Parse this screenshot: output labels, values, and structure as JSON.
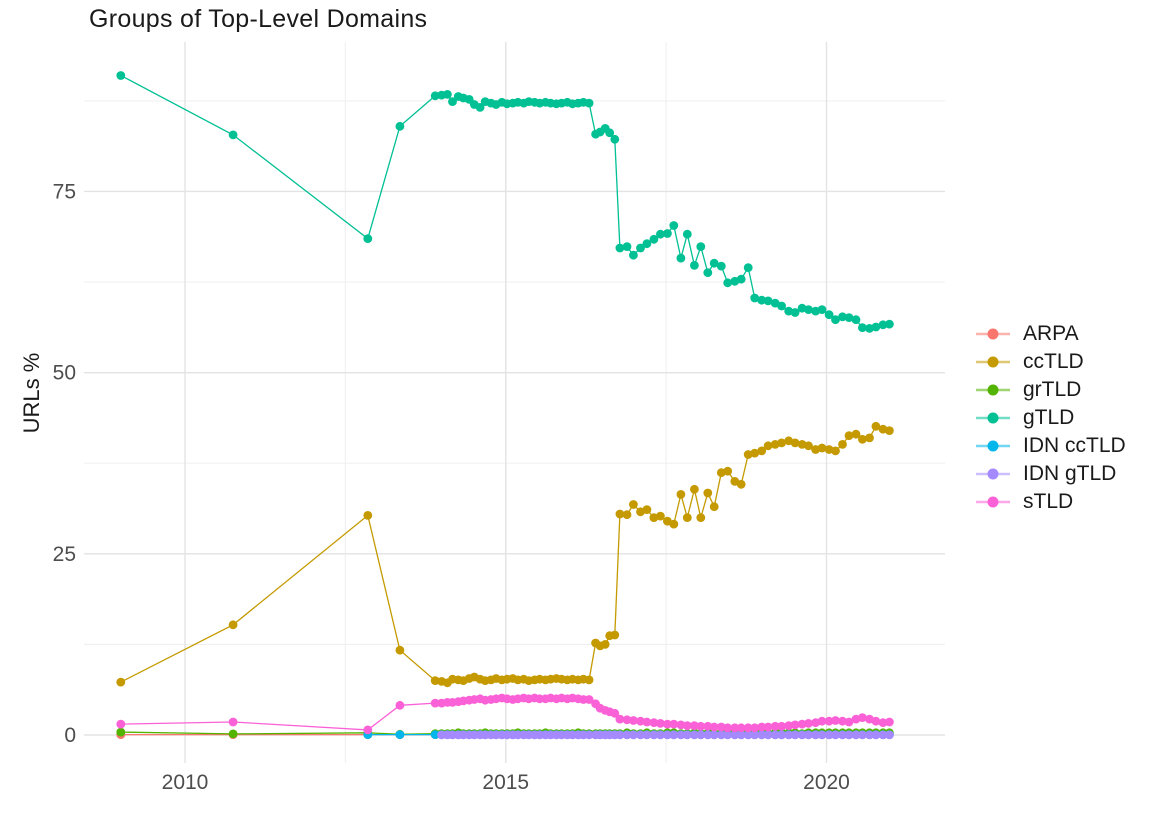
{
  "chart_data": {
    "type": "line",
    "title": "Groups of Top-Level Domains",
    "xlabel": "",
    "ylabel": "URLs %",
    "x_ticks": [
      2010,
      2015,
      2020
    ],
    "x_minor_ticks": [
      2012.5,
      2017.5
    ],
    "y_ticks": [
      0,
      25,
      50,
      75
    ],
    "y_minor_ticks": [
      12.5,
      37.5,
      62.5,
      87.5
    ],
    "xlim": [
      2008.4,
      2021.9
    ],
    "ylim": [
      -4,
      96
    ],
    "grid": true,
    "legend_position": "right",
    "x": [
      2009.0,
      2010.75,
      2012.85,
      2013.35,
      2013.9,
      2014.0,
      2014.09,
      2014.17,
      2014.26,
      2014.34,
      2014.43,
      2014.51,
      2014.6,
      2014.68,
      2014.77,
      2014.85,
      2014.94,
      2015.02,
      2015.11,
      2015.19,
      2015.28,
      2015.36,
      2015.45,
      2015.53,
      2015.62,
      2015.7,
      2015.79,
      2015.87,
      2015.96,
      2016.04,
      2016.13,
      2016.21,
      2016.3,
      2016.4,
      2016.47,
      2016.55,
      2016.62,
      2016.7,
      2016.78,
      2016.89,
      2016.99,
      2017.1,
      2017.2,
      2017.31,
      2017.41,
      2017.52,
      2017.62,
      2017.73,
      2017.83,
      2017.94,
      2018.04,
      2018.15,
      2018.25,
      2018.36,
      2018.46,
      2018.57,
      2018.67,
      2018.78,
      2018.88,
      2018.99,
      2019.09,
      2019.2,
      2019.3,
      2019.41,
      2019.51,
      2019.62,
      2019.72,
      2019.83,
      2019.93,
      2020.04,
      2020.14,
      2020.25,
      2020.35,
      2020.46,
      2020.56,
      2020.67,
      2020.77,
      2020.88,
      2020.98
    ],
    "series": [
      {
        "name": "ARPA",
        "color": "#F8766D",
        "values": [
          0.05,
          0.05,
          0.05,
          0.05,
          0.05,
          0.05,
          0.05,
          0.05,
          0.05,
          0.05,
          0.05,
          0.05,
          0.05,
          0.05,
          0.05,
          0.05,
          0.05,
          0.05,
          0.05,
          0.05,
          0.05,
          0.05,
          0.05,
          0.05,
          0.05,
          0.05,
          0.05,
          0.05,
          0.05,
          0.05,
          0.05,
          0.05,
          0.05,
          0.05,
          0.05,
          0.05,
          0.05,
          0.05,
          0.05,
          0.05,
          0.05,
          0.05,
          0.05,
          0.05,
          0.05,
          0.05,
          0.05,
          0.05,
          0.05,
          0.05,
          0.05,
          0.05,
          0.05,
          0.05,
          0.05,
          0.05,
          0.05,
          0.05,
          0.05,
          0.05,
          0.05,
          0.05,
          0.05,
          0.05,
          0.05,
          0.05,
          0.05,
          0.05,
          0.05,
          0.05,
          0.05,
          0.05,
          0.05,
          0.05,
          0.05,
          0.05,
          0.05,
          0.05,
          0.05
        ]
      },
      {
        "name": "ccTLD",
        "color": "#C49A00",
        "values": [
          7.3,
          15.2,
          30.3,
          11.7,
          7.5,
          7.4,
          7.2,
          7.7,
          7.6,
          7.5,
          7.8,
          8.0,
          7.7,
          7.5,
          7.6,
          7.8,
          7.6,
          7.7,
          7.8,
          7.6,
          7.7,
          7.5,
          7.6,
          7.7,
          7.6,
          7.7,
          7.8,
          7.7,
          7.6,
          7.7,
          7.6,
          7.7,
          7.6,
          12.7,
          12.3,
          12.5,
          13.7,
          13.8,
          30.5,
          30.4,
          31.8,
          30.8,
          31.1,
          30.0,
          30.2,
          29.5,
          29.1,
          33.2,
          30.0,
          33.9,
          30.0,
          33.4,
          31.5,
          36.2,
          36.4,
          35.0,
          34.6,
          38.7,
          38.9,
          39.2,
          39.9,
          40.1,
          40.3,
          40.6,
          40.3,
          40.1,
          39.9,
          39.4,
          39.6,
          39.4,
          39.2,
          40.1,
          41.3,
          41.5,
          40.8,
          41.0,
          42.6,
          42.2,
          42.0
        ]
      },
      {
        "name": "grTLD",
        "color": "#53B400",
        "values": [
          0.4,
          0.15,
          0.3,
          0.1,
          0.2,
          0.2,
          0.2,
          0.2,
          0.3,
          0.2,
          0.2,
          0.2,
          0.2,
          0.3,
          0.2,
          0.2,
          0.2,
          0.2,
          0.2,
          0.3,
          0.2,
          0.2,
          0.2,
          0.2,
          0.3,
          0.2,
          0.2,
          0.2,
          0.2,
          0.2,
          0.3,
          0.2,
          0.2,
          0.2,
          0.2,
          0.2,
          0.2,
          0.2,
          0.2,
          0.3,
          0.2,
          0.2,
          0.3,
          0.2,
          0.2,
          0.3,
          0.3,
          0.2,
          0.2,
          0.3,
          0.2,
          0.3,
          0.3,
          0.2,
          0.3,
          0.3,
          0.2,
          0.3,
          0.3,
          0.3,
          0.2,
          0.3,
          0.3,
          0.3,
          0.3,
          0.2,
          0.3,
          0.3,
          0.3,
          0.3,
          0.3,
          0.3,
          0.3,
          0.3,
          0.3,
          0.3,
          0.3,
          0.3,
          0.3
        ]
      },
      {
        "name": "gTLD",
        "color": "#00C094",
        "values": [
          91.0,
          82.8,
          68.5,
          84.0,
          88.2,
          88.3,
          88.4,
          87.4,
          88.1,
          87.9,
          87.7,
          87.0,
          86.6,
          87.4,
          87.2,
          87.0,
          87.3,
          87.1,
          87.2,
          87.3,
          87.2,
          87.4,
          87.3,
          87.2,
          87.3,
          87.2,
          87.1,
          87.2,
          87.3,
          87.1,
          87.2,
          87.3,
          87.2,
          82.9,
          83.2,
          83.7,
          83.1,
          82.2,
          67.2,
          67.4,
          66.2,
          67.2,
          67.8,
          68.4,
          69.1,
          69.2,
          70.3,
          65.8,
          69.1,
          64.8,
          67.4,
          63.8,
          65.1,
          64.7,
          62.4,
          62.6,
          62.9,
          64.5,
          60.3,
          60.0,
          59.9,
          59.6,
          59.2,
          58.5,
          58.3,
          58.9,
          58.7,
          58.5,
          58.7,
          58.0,
          57.3,
          57.7,
          57.6,
          57.3,
          56.2,
          56.1,
          56.3,
          56.6,
          56.7
        ]
      },
      {
        "name": "IDN ccTLD",
        "color": "#00B6EB",
        "values": [
          null,
          null,
          0.05,
          0.05,
          0.05,
          0.05,
          0.05,
          0.05,
          0.05,
          0.05,
          0.05,
          0.05,
          0.05,
          0.05,
          0.05,
          0.05,
          0.05,
          0.05,
          0.05,
          0.05,
          0.05,
          0.05,
          0.05,
          0.05,
          0.05,
          0.05,
          0.05,
          0.05,
          0.05,
          0.05,
          0.05,
          0.05,
          0.05,
          0.05,
          0.05,
          0.05,
          0.05,
          0.05,
          0.05,
          0.05,
          0.05,
          0.05,
          0.05,
          0.05,
          0.05,
          0.05,
          0.05,
          0.05,
          0.05,
          0.05,
          0.05,
          0.05,
          0.05,
          0.05,
          0.05,
          0.05,
          0.05,
          0.05,
          0.05,
          0.05,
          0.05,
          0.05,
          0.05,
          0.05,
          0.05,
          0.05,
          0.05,
          0.05,
          0.05,
          0.05,
          0.05,
          0.05,
          0.05,
          0.05,
          0.05,
          0.05,
          0.05,
          0.05,
          0.05
        ]
      },
      {
        "name": "IDN gTLD",
        "color": "#A58AFF",
        "values": [
          null,
          null,
          null,
          null,
          null,
          0.02,
          0.02,
          0.02,
          0.02,
          0.02,
          0.02,
          0.02,
          0.02,
          0.02,
          0.02,
          0.02,
          0.02,
          0.02,
          0.02,
          0.02,
          0.02,
          0.02,
          0.02,
          0.02,
          0.02,
          0.02,
          0.02,
          0.02,
          0.02,
          0.02,
          0.02,
          0.02,
          0.02,
          0.02,
          0.02,
          0.02,
          0.02,
          0.02,
          0.02,
          0.02,
          0.02,
          0.02,
          0.02,
          0.02,
          0.02,
          0.02,
          0.02,
          0.02,
          0.02,
          0.02,
          0.02,
          0.02,
          0.02,
          0.02,
          0.02,
          0.02,
          0.02,
          0.02,
          0.02,
          0.02,
          0.02,
          0.02,
          0.02,
          0.02,
          0.02,
          0.02,
          0.02,
          0.02,
          0.02,
          0.02,
          0.02,
          0.02,
          0.02,
          0.02,
          0.02,
          0.02,
          0.02,
          0.02,
          0.02
        ]
      },
      {
        "name": "sTLD",
        "color": "#FB61D7",
        "values": [
          1.5,
          1.8,
          0.7,
          4.1,
          4.4,
          4.4,
          4.5,
          4.5,
          4.6,
          4.7,
          4.8,
          4.9,
          5.0,
          4.8,
          4.9,
          5.0,
          5.1,
          5.0,
          4.9,
          5.0,
          5.1,
          5.0,
          5.1,
          5.0,
          5.0,
          5.1,
          5.0,
          5.1,
          5.0,
          5.1,
          5.0,
          4.9,
          4.9,
          4.3,
          3.7,
          3.4,
          3.2,
          3.0,
          2.2,
          2.1,
          2.0,
          1.9,
          1.8,
          1.7,
          1.6,
          1.5,
          1.5,
          1.4,
          1.3,
          1.3,
          1.2,
          1.2,
          1.1,
          1.1,
          1.0,
          1.0,
          1.0,
          1.0,
          1.0,
          1.1,
          1.1,
          1.2,
          1.2,
          1.3,
          1.4,
          1.5,
          1.6,
          1.7,
          1.9,
          1.9,
          2.0,
          1.9,
          1.8,
          2.2,
          2.4,
          2.2,
          1.9,
          1.7,
          1.8
        ]
      }
    ]
  }
}
